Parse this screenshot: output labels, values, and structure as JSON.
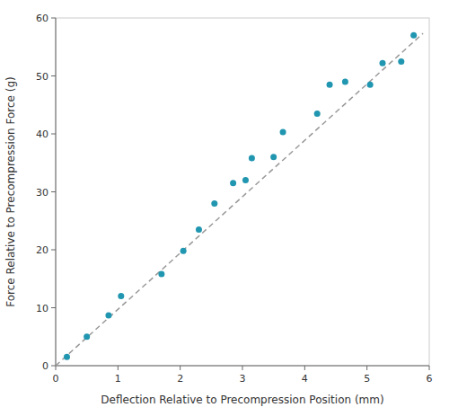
{
  "chart_data": {
    "type": "scatter",
    "xlabel": "Deflection Relative to Precompression Position (mm)",
    "ylabel": "Force Relative to Precompression Force (g)",
    "xlim": [
      0,
      6
    ],
    "ylim": [
      0,
      60
    ],
    "xticks": [
      0,
      1,
      2,
      3,
      4,
      5,
      6
    ],
    "yticks": [
      0,
      10,
      20,
      30,
      40,
      50,
      60
    ],
    "grid": false,
    "series": [
      {
        "type": "line",
        "x": [
          0.0,
          5.9
        ],
        "values": [
          0.0,
          57.348
        ],
        "color": "#999999",
        "line_style": "dashed"
      },
      {
        "type": "scatter",
        "x": [
          0.18,
          0.5,
          0.85,
          1.05,
          1.7,
          2.05,
          2.3,
          2.55,
          2.85,
          3.05,
          3.15,
          3.5,
          3.65,
          4.2,
          4.4,
          4.65,
          5.05,
          5.25,
          5.55,
          5.75
        ],
        "values": [
          1.5,
          5.0,
          8.7,
          12.0,
          15.8,
          19.8,
          23.5,
          28.0,
          31.5,
          32.0,
          35.8,
          36.0,
          40.3,
          43.5,
          48.5,
          49.0,
          48.5,
          52.2,
          52.5,
          57.0
        ],
        "color": "#2196B0",
        "marker": "circle"
      }
    ]
  }
}
